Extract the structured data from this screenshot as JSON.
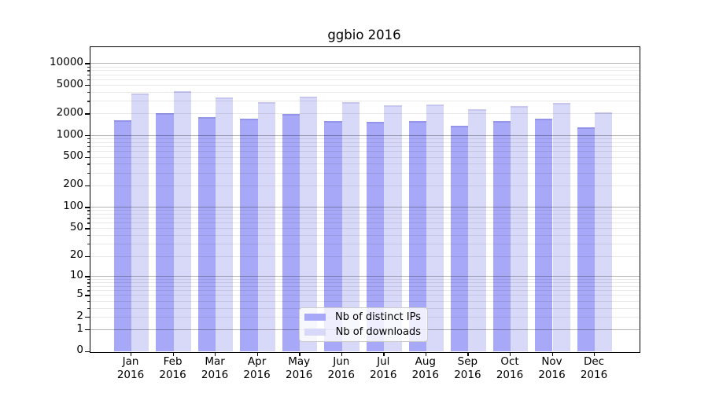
{
  "chart_data": {
    "type": "bar",
    "title": "ggbio 2016",
    "categories": [
      "Jan 2016",
      "Feb 2016",
      "Mar 2016",
      "Apr 2016",
      "May 2016",
      "Jun 2016",
      "Jul 2016",
      "Aug 2016",
      "Sep 2016",
      "Oct 2016",
      "Nov 2016",
      "Dec 2016"
    ],
    "series": [
      {
        "name": "Nb of distinct IPs",
        "color": "#a8a8f8",
        "edge_color": "#9494ea",
        "values": [
          1620,
          2030,
          1780,
          1690,
          1970,
          1590,
          1530,
          1590,
          1350,
          1560,
          1710,
          1300
        ]
      },
      {
        "name": "Nb of downloads",
        "color": "#d8d8f8",
        "edge_color": "#c6c6f0",
        "values": [
          3750,
          4070,
          3360,
          2860,
          3390,
          2910,
          2620,
          2640,
          2290,
          2550,
          2840,
          2050
        ]
      }
    ],
    "yscale": "log10(1+y)",
    "ylim": [
      0,
      16000
    ],
    "yticks": [
      0,
      1,
      2,
      5,
      10,
      20,
      50,
      100,
      200,
      500,
      1000,
      2000,
      5000,
      10000
    ],
    "grid": "horizontal, darker lines at powers of ten, faint log minor lines",
    "legend_position": "lower center"
  },
  "colors": {
    "background": "#ffffff",
    "major_grid": "#b3b3b3",
    "minor_grid": "#ebebeb",
    "spine": "#000000"
  }
}
